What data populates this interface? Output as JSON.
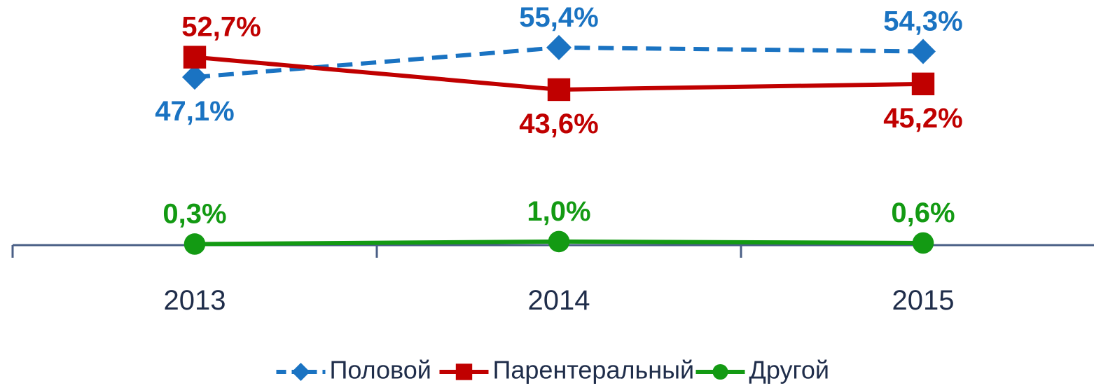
{
  "chart_data": {
    "type": "line",
    "categories": [
      "2013",
      "2014",
      "2015"
    ],
    "series": [
      {
        "name": "Половой",
        "color": "#1a73c2",
        "marker": "diamond",
        "dash": true,
        "values": [
          47.1,
          55.4,
          54.3
        ],
        "value_labels": [
          "47,1%",
          "55,4%",
          "54,3%"
        ]
      },
      {
        "name": "Парентеральный",
        "color": "#c00000",
        "marker": "square",
        "dash": false,
        "values": [
          52.7,
          43.6,
          45.2
        ],
        "value_labels": [
          "52,7%",
          "43,6%",
          "45,2%"
        ]
      },
      {
        "name": "Другой",
        "color": "#139a13",
        "marker": "circle",
        "dash": false,
        "values": [
          0.3,
          1.0,
          0.6
        ],
        "value_labels": [
          "0,3%",
          "1,0%",
          "0,6%"
        ]
      }
    ],
    "ylim": [
      0,
      65
    ]
  }
}
